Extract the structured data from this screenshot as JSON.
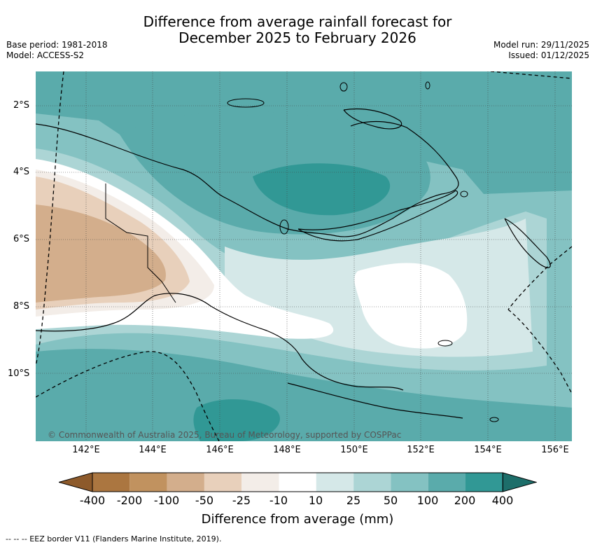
{
  "title": {
    "line1": "Difference from average rainfall forecast for",
    "line2": "December 2025 to February 2026"
  },
  "meta": {
    "base_period": "Base period: 1981-2018",
    "model": "Model: ACCESS-S2",
    "model_run": "Model run: 29/11/2025",
    "issued": "Issued: 01/12/2025"
  },
  "map": {
    "lat_labels": [
      "2°S",
      "4°S",
      "6°S",
      "8°S",
      "10°S"
    ],
    "lon_labels": [
      "142°E",
      "144°E",
      "146°E",
      "148°E",
      "150°E",
      "152°E",
      "154°E",
      "156°E"
    ],
    "copyright": "© Commonwealth of Australia 2025, Bureau of Meteorology, supported by COSPPac"
  },
  "colorbar": {
    "title": "Difference from average (mm)",
    "ticks": [
      "-400",
      "-200",
      "-100",
      "-50",
      "-25",
      "-10",
      "10",
      "25",
      "50",
      "100",
      "200",
      "400"
    ],
    "colors": {
      "below_400": "#8d5a2b",
      "c1": "#ab7640",
      "c2": "#c1925f",
      "c3": "#d3ae8c",
      "c4": "#e8d0bb",
      "c5": "#f3ede8",
      "c6": "#ffffff",
      "c7": "#d5e8e8",
      "c8": "#acd5d5",
      "c9": "#84c2c2",
      "c10": "#5aabab",
      "c11": "#319895",
      "above_400": "#1d6e6a"
    }
  },
  "footnote": "--  --  -- EEZ border V11 (Flanders Marine Institute, 2019)."
}
